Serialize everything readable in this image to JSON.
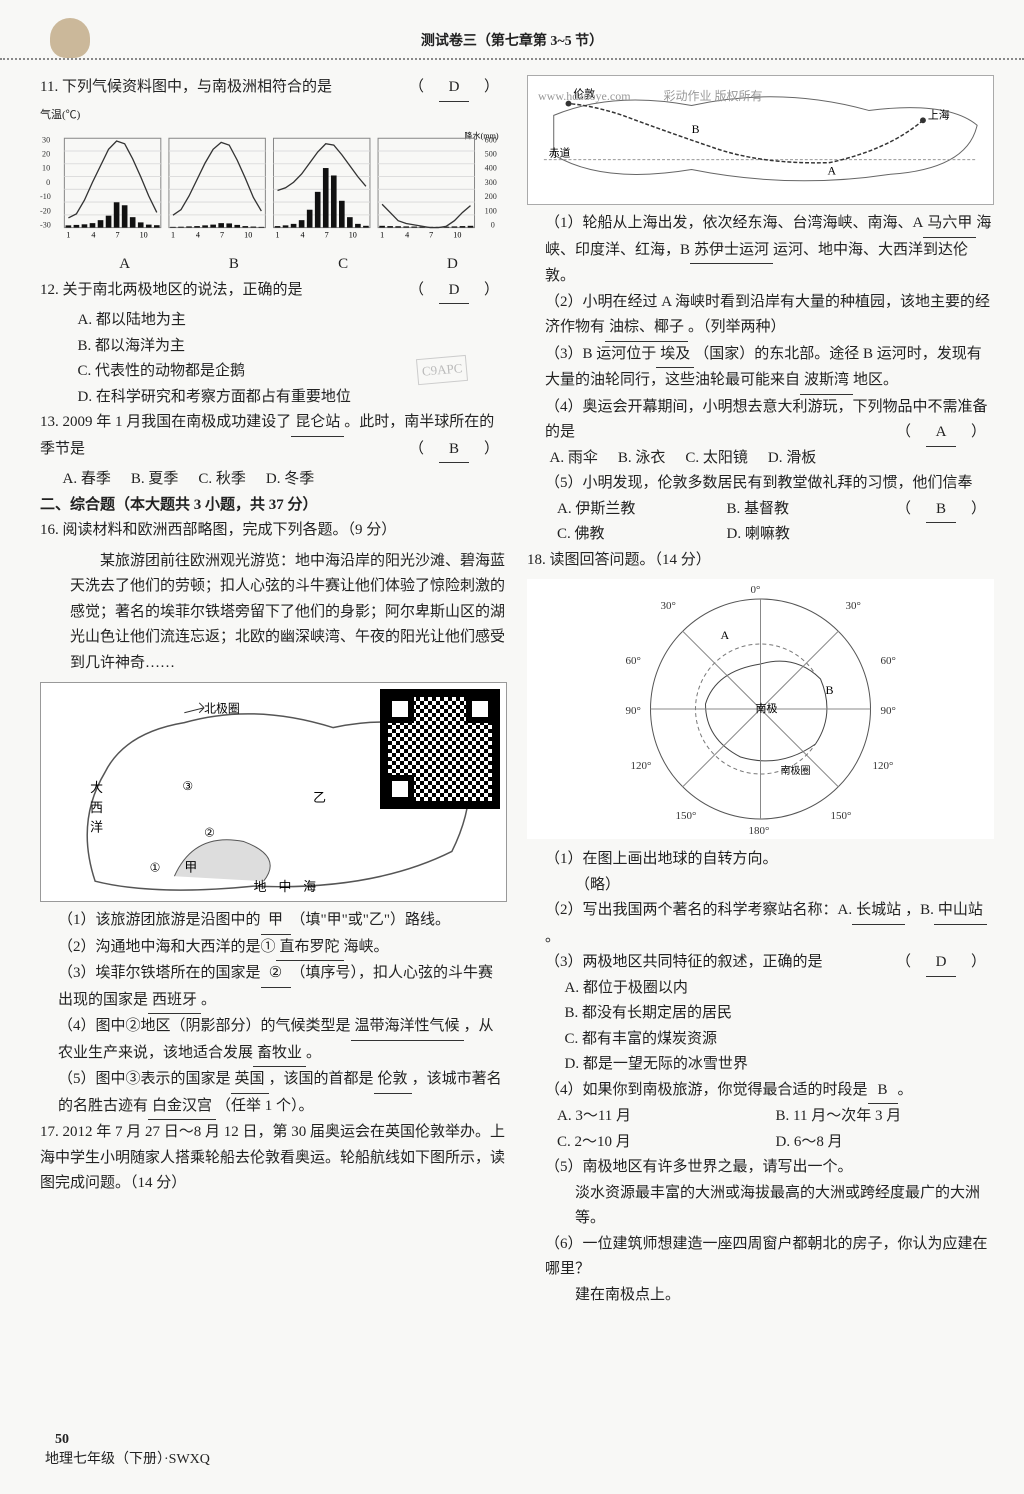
{
  "header": {
    "title": "测试卷三（第七章第 3~5 节）"
  },
  "footer": {
    "page": "50",
    "book": "地理七年级（下册）·SWXQ"
  },
  "q11": {
    "stem": "11. 下列气候资料图中，与南极洲相符合的是",
    "answer": "D",
    "ylabel_temp": "气温(℃)",
    "ylabel_prec": "降水(mm)",
    "temp_ticks": [
      "30",
      "20",
      "10",
      "0",
      "-10",
      "-20",
      "-30"
    ],
    "prec_ticks": [
      "600",
      "500",
      "400",
      "300",
      "200",
      "100",
      "0"
    ],
    "x_ticks": [
      "1",
      "4",
      "7",
      "10"
    ],
    "charts": {
      "A": {
        "temp": [
          -28,
          -25,
          -15,
          -2,
          10,
          22,
          28,
          26,
          15,
          2,
          -12,
          -24
        ],
        "prec": [
          15,
          18,
          22,
          30,
          50,
          80,
          170,
          150,
          70,
          35,
          20,
          16
        ],
        "line_color": "#333",
        "bar_color": "#111"
      },
      "B": {
        "temp": [
          -26,
          -22,
          -12,
          0,
          12,
          22,
          27,
          25,
          14,
          1,
          -13,
          -23
        ],
        "prec": [
          5,
          6,
          8,
          10,
          15,
          20,
          30,
          28,
          18,
          10,
          7,
          5
        ],
        "line_color": "#333",
        "bar_color": "#111"
      },
      "C": {
        "temp": [
          -8,
          -6,
          -2,
          4,
          12,
          20,
          26,
          25,
          18,
          10,
          2,
          -5
        ],
        "prec": [
          10,
          15,
          25,
          50,
          120,
          240,
          400,
          350,
          180,
          70,
          25,
          12
        ],
        "line_color": "#333",
        "bar_color": "#111"
      },
      "D": {
        "temp": [
          -18,
          -24,
          -30,
          -32,
          -33,
          -34,
          -35,
          -35,
          -34,
          -30,
          -24,
          -19
        ],
        "prec": [
          12,
          10,
          9,
          8,
          7,
          6,
          5,
          5,
          6,
          8,
          10,
          12
        ],
        "line_color": "#333",
        "bar_color": "#111"
      }
    },
    "labels": [
      "A",
      "B",
      "C",
      "D"
    ]
  },
  "q12": {
    "stem": "12. 关于南北两极地区的说法，正确的是",
    "answer": "D",
    "opts": {
      "A": "A. 都以陆地为主",
      "B": "B. 都以海洋为主",
      "C": "C. 代表性的动物都是企鹅",
      "D": "D. 在科学研究和考察方面都占有重要地位"
    }
  },
  "q13": {
    "stem1": "13. 2009 年 1 月我国在南极成功建设了",
    "ans_station": "昆仑站",
    "stem2": "。此时，南半球所在的季节是",
    "answer": "B",
    "opts": {
      "A": "A. 春季",
      "B": "B. 夏季",
      "C": "C. 秋季",
      "D": "D. 冬季"
    }
  },
  "section2": "二、综合题（本大题共 3 小题，共 37 分）",
  "q16": {
    "stem": "16. 阅读材料和欧洲西部略图，完成下列各题。（9 分）",
    "passage": "某旅游团前往欧洲观光游览：地中海沿岸的阳光沙滩、碧海蓝天洗去了他们的劳顿；扣人心弦的斗牛赛让他们体验了惊险刺激的感觉；著名的埃菲尔铁塔旁留下了他们的身影；阿尔卑斯山区的湖光山色让他们流连忘返；北欧的幽深峡湾、午夜的阳光让他们感受到几许神奇……",
    "map_labels": {
      "atlantic": "大西洋",
      "arctic": "北极圈",
      "med": "地中海",
      "med2": "海",
      "jia": "甲",
      "yi": "乙"
    },
    "sub1": {
      "t1": "（1）该旅游团旅游是沿图中的",
      "ans": "甲",
      "t2": "（填\"甲\"或\"乙\"）路线。"
    },
    "sub2": {
      "t1": "（2）沟通地中海和大西洋的是①",
      "ans": "直布罗陀",
      "t2": "海峡。"
    },
    "sub3": {
      "t1": "（3）埃菲尔铁塔所在的国家是",
      "ans1": "②",
      "t2": "（填序号），扣人心弦的斗牛赛出现的国家是",
      "ans2": "西班牙",
      "t3": "。"
    },
    "sub4": {
      "t1": "（4）图中②地区（阴影部分）的气候类型是",
      "ans1": "温带海洋性气候",
      "t2": "，从农业生产来说，该地适合发展",
      "ans2": "畜牧业",
      "t3": "。"
    },
    "sub5": {
      "t1": "（5）图中③表示的国家是",
      "ans1": "英国",
      "t2": "，该国的首都是",
      "ans2": "伦敦",
      "t3": "，该城市著名的名胜古迹有",
      "ans3": "白金汉宫",
      "t4": "（任举 1 个）。"
    }
  },
  "q17": {
    "stem": "17. 2012 年 7 月 27 日～8 月 12 日，第 30 届奥运会在英国伦敦举办。上海中学生小明随家人搭乘轮船去伦敦看奥运。轮船航线如下图所示，读图完成问题。（14 分）",
    "watermark": "www.hdzuoye.com",
    "wm2": "彩动作业 版权所有",
    "map_labels": {
      "london": "伦敦",
      "shanghai": "上海",
      "equator": "赤道",
      "A": "A"
    },
    "sub1": {
      "t1": "（1）轮船从上海出发，依次经东海、台湾海峡、南海、A",
      "ans1": "马六甲",
      "t2": "海峡、印度洋、红海，B",
      "ans2": "苏伊士运河",
      "t3": "运河、地中海、大西洋到达伦敦。"
    },
    "sub2": {
      "t1": "（2）小明在经过 A 海峡时看到沿岸有大量的种植园，该地主要的经济作物有",
      "ans": "油棕、椰子",
      "t2": "。（列举两种）"
    },
    "sub3": {
      "t1": "（3）B 运河位于",
      "ans1": "埃及",
      "t2": "（国家）的东北部。途径 B 运河时，发现有大量的油轮同行，这些油轮最可能来自",
      "ans2": "波斯湾",
      "t3": "地区。"
    },
    "sub4": {
      "t1": "（4）奥运会开幕期间，小明想去意大利游玩，下列物品中不需准备的是",
      "answer": "A",
      "opts": {
        "A": "A. 雨伞",
        "B": "B. 泳衣",
        "C": "C. 太阳镜",
        "D": "D. 滑板"
      }
    },
    "sub5": {
      "t1": "（5）小明发现，伦敦多数居民有到教堂做礼拜的习惯，他们信奉",
      "answer": "B",
      "opts": {
        "A": "A. 伊斯兰教",
        "B": "B. 基督教",
        "C": "C. 佛教",
        "D": "D. 喇嘛教"
      }
    }
  },
  "q18": {
    "stem": "18. 读图回答问题。（14 分）",
    "map": {
      "lon_labels": [
        "30°",
        "0°",
        "30°",
        "60°",
        "90°",
        "120°",
        "150°",
        "180°",
        "150°",
        "120°",
        "90°",
        "60°"
      ],
      "center": "南极",
      "circle": "南极圈",
      "A": "A",
      "B": "B"
    },
    "sub1": {
      "t": "（1）在图上画出地球的自转方向。",
      "ans": "（略）"
    },
    "sub2": {
      "t1": "（2）写出我国两个著名的科学考察站名称：A.",
      "ans1": "长城站",
      "t2": "，B.",
      "ans2": "中山站",
      "t3": "。"
    },
    "sub3": {
      "t": "（3）两极地区共同特征的叙述，正确的是",
      "answer": "D",
      "opts": {
        "A": "A. 都位于极圈以内",
        "B": "B. 都没有长期定居的居民",
        "C": "C. 都有丰富的煤炭资源",
        "D": "D. 都是一望无际的冰雪世界"
      }
    },
    "sub4": {
      "t1": "（4）如果你到南极旅游，你觉得最合适的时段是",
      "ans": "B",
      "t2": "。",
      "opts": {
        "A": "A. 3～11 月",
        "B": "B. 11 月～次年 3 月",
        "C": "C. 2～10 月",
        "D": "D. 6～8 月"
      }
    },
    "sub5": {
      "t": "（5）南极地区有许多世界之最，请写出一个。",
      "ans": "淡水资源最丰富的大洲或海拔最高的大洲或跨经度最广的大洲等。"
    },
    "sub6": {
      "t": "（6）一位建筑师想建造一座四周窗户都朝北的房子，你认为应建在哪里？",
      "ans": "建在南极点上。"
    }
  },
  "stamp": "C9APC"
}
